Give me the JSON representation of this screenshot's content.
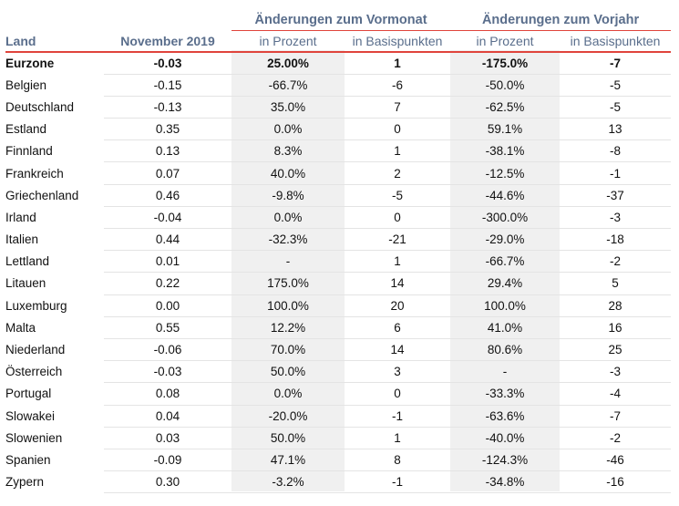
{
  "header": {
    "group_vormonat": "Änderungen zum Vormonat",
    "group_vorjahr": "Änderungen zum Vorjahr",
    "col_land": "Land",
    "col_month": "November 2019",
    "col_vm_pct": "in Prozent",
    "col_vm_bp": "in Basispunkten",
    "col_vj_pct": "in Prozent",
    "col_vj_bp": "in Basispunkten"
  },
  "rows": [
    {
      "land": "Eurzone",
      "value": "-0.03",
      "vm_pct": "25.00%",
      "vm_bp": "1",
      "vj_pct": "-175.0%",
      "vj_bp": "-7",
      "bold": true
    },
    {
      "land": "Belgien",
      "value": "-0.15",
      "vm_pct": "-66.7%",
      "vm_bp": "-6",
      "vj_pct": "-50.0%",
      "vj_bp": "-5"
    },
    {
      "land": "Deutschland",
      "value": "-0.13",
      "vm_pct": "35.0%",
      "vm_bp": "7",
      "vj_pct": "-62.5%",
      "vj_bp": "-5"
    },
    {
      "land": "Estland",
      "value": "0.35",
      "vm_pct": "0.0%",
      "vm_bp": "0",
      "vj_pct": "59.1%",
      "vj_bp": "13"
    },
    {
      "land": "Finnland",
      "value": "0.13",
      "vm_pct": "8.3%",
      "vm_bp": "1",
      "vj_pct": "-38.1%",
      "vj_bp": "-8"
    },
    {
      "land": "Frankreich",
      "value": "0.07",
      "vm_pct": "40.0%",
      "vm_bp": "2",
      "vj_pct": "-12.5%",
      "vj_bp": "-1"
    },
    {
      "land": "Griechenland",
      "value": "0.46",
      "vm_pct": "-9.8%",
      "vm_bp": "-5",
      "vj_pct": "-44.6%",
      "vj_bp": "-37"
    },
    {
      "land": "Irland",
      "value": "-0.04",
      "vm_pct": "0.0%",
      "vm_bp": "0",
      "vj_pct": "-300.0%",
      "vj_bp": "-3"
    },
    {
      "land": "Italien",
      "value": "0.44",
      "vm_pct": "-32.3%",
      "vm_bp": "-21",
      "vj_pct": "-29.0%",
      "vj_bp": "-18"
    },
    {
      "land": "Lettland",
      "value": "0.01",
      "vm_pct": "-",
      "vm_bp": "1",
      "vj_pct": "-66.7%",
      "vj_bp": "-2"
    },
    {
      "land": "Litauen",
      "value": "0.22",
      "vm_pct": "175.0%",
      "vm_bp": "14",
      "vj_pct": "29.4%",
      "vj_bp": "5"
    },
    {
      "land": "Luxemburg",
      "value": "0.00",
      "vm_pct": "100.0%",
      "vm_bp": "20",
      "vj_pct": "100.0%",
      "vj_bp": "28"
    },
    {
      "land": "Malta",
      "value": "0.55",
      "vm_pct": "12.2%",
      "vm_bp": "6",
      "vj_pct": "41.0%",
      "vj_bp": "16"
    },
    {
      "land": "Niederland",
      "value": "-0.06",
      "vm_pct": "70.0%",
      "vm_bp": "14",
      "vj_pct": "80.6%",
      "vj_bp": "25"
    },
    {
      "land": "Österreich",
      "value": "-0.03",
      "vm_pct": "50.0%",
      "vm_bp": "3",
      "vj_pct": "-",
      "vj_bp": "-3"
    },
    {
      "land": "Portugal",
      "value": "0.08",
      "vm_pct": "0.0%",
      "vm_bp": "0",
      "vj_pct": "-33.3%",
      "vj_bp": "-4"
    },
    {
      "land": "Slowakei",
      "value": "0.04",
      "vm_pct": "-20.0%",
      "vm_bp": "-1",
      "vj_pct": "-63.6%",
      "vj_bp": "-7"
    },
    {
      "land": "Slowenien",
      "value": "0.03",
      "vm_pct": "50.0%",
      "vm_bp": "1",
      "vj_pct": "-40.0%",
      "vj_bp": "-2"
    },
    {
      "land": "Spanien",
      "value": "-0.09",
      "vm_pct": "47.1%",
      "vm_bp": "8",
      "vj_pct": "-124.3%",
      "vj_bp": "-46"
    },
    {
      "land": "Zypern",
      "value": "0.30",
      "vm_pct": "-3.2%",
      "vm_bp": "-1",
      "vj_pct": "-34.8%",
      "vj_bp": "-16"
    }
  ],
  "colors": {
    "accent_line": "#e0443c",
    "header_text": "#5a6e8c",
    "shade": "#f0f0f0"
  }
}
